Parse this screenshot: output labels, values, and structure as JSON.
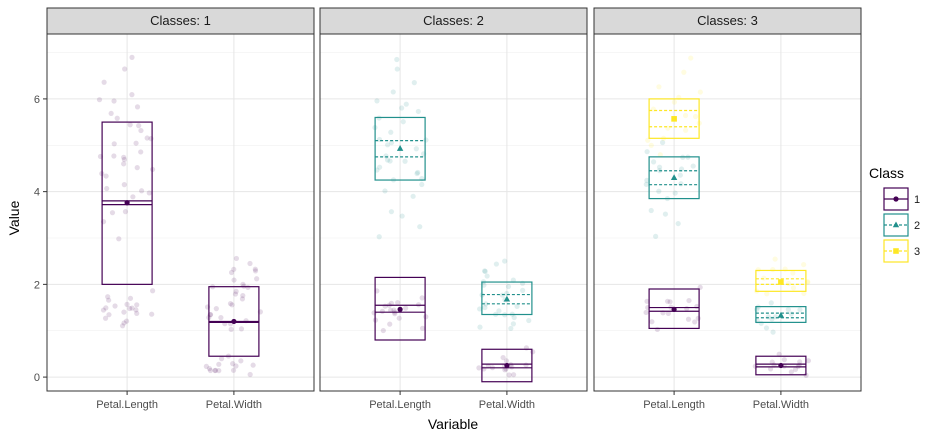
{
  "chart_data": {
    "type": "boxplot-faceted",
    "facet_prefix": "Classes: ",
    "facets": [
      {
        "label": "Classes: 1",
        "classes": [
          "1"
        ]
      },
      {
        "label": "Classes: 2",
        "classes": [
          "1",
          "2"
        ]
      },
      {
        "label": "Classes: 3",
        "classes": [
          "1",
          "2",
          "3"
        ]
      }
    ],
    "categories": [
      "Petal.Length",
      "Petal.Width"
    ],
    "xlabel": "Variable",
    "ylabel": "Value",
    "ylim": [
      -0.3,
      7.4
    ],
    "yticks": [
      0,
      2,
      4,
      6
    ],
    "grid": true,
    "legend": {
      "title": "Class",
      "position": "right",
      "entries": [
        "1",
        "2",
        "3"
      ]
    },
    "series_colors": {
      "1": "#440154",
      "2": "#21908C",
      "3": "#FDE725"
    },
    "series_shapes": {
      "1": "circle",
      "2": "triangle",
      "3": "square"
    },
    "series_linetypes": {
      "1": "solid",
      "2": "dashed",
      "3": "dashed"
    },
    "boxes": [
      {
        "facet": 0,
        "category": "Petal.Length",
        "class": "1",
        "lower": 2.0,
        "upper": 5.5,
        "mean": 3.76,
        "median_lo": 3.72,
        "median_hi": 3.8
      },
      {
        "facet": 0,
        "category": "Petal.Width",
        "class": "1",
        "lower": 0.45,
        "upper": 1.95,
        "mean": 1.2,
        "median_lo": 1.18,
        "median_hi": 1.2
      },
      {
        "facet": 1,
        "category": "Petal.Length",
        "class": "1",
        "lower": 0.8,
        "upper": 2.15,
        "mean": 1.46,
        "median_lo": 1.4,
        "median_hi": 1.55
      },
      {
        "facet": 1,
        "category": "Petal.Length",
        "class": "2",
        "lower": 4.25,
        "upper": 5.6,
        "mean": 4.93,
        "median_lo": 4.75,
        "median_hi": 5.1
      },
      {
        "facet": 1,
        "category": "Petal.Width",
        "class": "1",
        "lower": -0.1,
        "upper": 0.6,
        "mean": 0.25,
        "median_lo": 0.2,
        "median_hi": 0.28
      },
      {
        "facet": 1,
        "category": "Petal.Width",
        "class": "2",
        "lower": 1.35,
        "upper": 2.05,
        "mean": 1.68,
        "median_lo": 1.58,
        "median_hi": 1.78
      },
      {
        "facet": 2,
        "category": "Petal.Length",
        "class": "1",
        "lower": 1.05,
        "upper": 1.9,
        "mean": 1.46,
        "median_lo": 1.42,
        "median_hi": 1.5
      },
      {
        "facet": 2,
        "category": "Petal.Length",
        "class": "2",
        "lower": 3.85,
        "upper": 4.75,
        "mean": 4.3,
        "median_lo": 4.15,
        "median_hi": 4.45
      },
      {
        "facet": 2,
        "category": "Petal.Length",
        "class": "3",
        "lower": 5.15,
        "upper": 6.0,
        "mean": 5.57,
        "median_lo": 5.4,
        "median_hi": 5.75
      },
      {
        "facet": 2,
        "category": "Petal.Width",
        "class": "1",
        "lower": 0.05,
        "upper": 0.45,
        "mean": 0.25,
        "median_lo": 0.22,
        "median_hi": 0.28
      },
      {
        "facet": 2,
        "category": "Petal.Width",
        "class": "2",
        "lower": 1.18,
        "upper": 1.52,
        "mean": 1.33,
        "median_lo": 1.28,
        "median_hi": 1.38
      },
      {
        "facet": 2,
        "category": "Petal.Width",
        "class": "3",
        "lower": 1.85,
        "upper": 2.3,
        "mean": 2.05,
        "median_lo": 2.0,
        "median_hi": 2.12
      }
    ],
    "jitter_points": [
      {
        "facet": 0,
        "category": "Petal.Length",
        "class": "1",
        "values": [
          1.2,
          1.3,
          1.4,
          1.4,
          1.5,
          1.5,
          1.5,
          1.6,
          1.6,
          1.7,
          1.4,
          1.3,
          1.5,
          1.9,
          1.1,
          1.4,
          1.6,
          1.2,
          1.5,
          1.7,
          3.0,
          3.3,
          3.5,
          3.6,
          3.9,
          4.0,
          4.1,
          4.2,
          4.4,
          4.5,
          4.5,
          4.6,
          4.7,
          4.7,
          4.8,
          4.9,
          5.0,
          5.1,
          5.1,
          5.3,
          5.5,
          5.6,
          5.7,
          5.8,
          5.9,
          6.0,
          6.1,
          6.3,
          6.6,
          6.9,
          4.3,
          4.0,
          4.8,
          5.4,
          5.0
        ]
      },
      {
        "facet": 0,
        "category": "Petal.Width",
        "class": "1",
        "values": [
          0.1,
          0.2,
          0.2,
          0.2,
          0.3,
          0.2,
          0.4,
          0.2,
          0.3,
          0.1,
          0.2,
          0.4,
          0.5,
          0.3,
          0.2,
          1.0,
          1.1,
          1.2,
          1.3,
          1.3,
          1.4,
          1.5,
          1.5,
          1.6,
          1.8,
          1.8,
          1.9,
          2.0,
          2.1,
          2.2,
          2.3,
          2.3,
          2.4,
          2.5,
          1.0,
          1.2,
          1.4,
          1.7,
          1.9,
          2.1,
          2.3,
          1.3,
          1.5,
          1.8,
          2.0
        ]
      },
      {
        "facet": 1,
        "category": "Petal.Length",
        "class": "1",
        "values": [
          1.0,
          1.2,
          1.3,
          1.4,
          1.4,
          1.5,
          1.5,
          1.5,
          1.6,
          1.6,
          1.7,
          1.9,
          1.3,
          1.4,
          1.5,
          1.2,
          1.6,
          1.1,
          1.4,
          1.5
        ]
      },
      {
        "facet": 1,
        "category": "Petal.Length",
        "class": "2",
        "values": [
          3.0,
          3.3,
          3.5,
          3.6,
          3.9,
          4.0,
          4.1,
          4.2,
          4.4,
          4.5,
          4.5,
          4.6,
          4.7,
          4.7,
          4.8,
          4.9,
          5.0,
          5.1,
          5.1,
          5.3,
          5.5,
          5.6,
          5.7,
          5.8,
          5.9,
          6.0,
          6.1,
          6.3,
          6.6,
          6.9,
          4.3,
          4.8,
          5.4,
          5.0,
          4.4
        ]
      },
      {
        "facet": 1,
        "category": "Petal.Width",
        "class": "1",
        "values": [
          0.1,
          0.2,
          0.2,
          0.2,
          0.3,
          0.2,
          0.4,
          0.2,
          0.3,
          0.1,
          0.2,
          0.4,
          0.5,
          0.3,
          0.2,
          0.6
        ]
      },
      {
        "facet": 1,
        "category": "Petal.Width",
        "class": "2",
        "values": [
          1.0,
          1.1,
          1.2,
          1.3,
          1.3,
          1.4,
          1.5,
          1.5,
          1.6,
          1.8,
          1.8,
          1.9,
          2.0,
          2.1,
          2.2,
          2.3,
          2.3,
          2.4,
          2.5,
          1.2,
          1.4,
          1.7,
          1.9,
          2.1,
          1.3,
          1.5,
          1.8,
          2.0
        ]
      },
      {
        "facet": 2,
        "category": "Petal.Length",
        "class": "1",
        "values": [
          1.0,
          1.2,
          1.3,
          1.4,
          1.4,
          1.5,
          1.5,
          1.5,
          1.6,
          1.6,
          1.7,
          1.9,
          1.3,
          1.4,
          1.5,
          1.2,
          1.6
        ]
      },
      {
        "facet": 2,
        "category": "Petal.Length",
        "class": "2",
        "values": [
          3.0,
          3.3,
          3.5,
          3.6,
          3.9,
          4.0,
          4.1,
          4.2,
          4.4,
          4.5,
          4.5,
          4.6,
          4.7,
          4.7,
          4.8,
          4.9,
          5.0,
          4.3,
          4.0,
          4.4
        ]
      },
      {
        "facet": 2,
        "category": "Petal.Length",
        "class": "3",
        "values": [
          4.8,
          5.0,
          5.1,
          5.3,
          5.5,
          5.6,
          5.7,
          5.8,
          5.9,
          6.0,
          6.1,
          6.3,
          6.6,
          6.9,
          5.4,
          5.1
        ]
      },
      {
        "facet": 2,
        "category": "Petal.Width",
        "class": "1",
        "values": [
          0.1,
          0.2,
          0.2,
          0.2,
          0.3,
          0.2,
          0.4,
          0.2,
          0.3,
          0.1,
          0.2,
          0.4,
          0.5,
          0.3
        ]
      },
      {
        "facet": 2,
        "category": "Petal.Width",
        "class": "2",
        "values": [
          1.0,
          1.1,
          1.2,
          1.3,
          1.3,
          1.4,
          1.5,
          1.5,
          1.6,
          1.2,
          1.4,
          1.3,
          1.5
        ]
      },
      {
        "facet": 2,
        "category": "Petal.Width",
        "class": "3",
        "values": [
          1.8,
          1.8,
          1.9,
          2.0,
          2.1,
          2.2,
          2.3,
          2.3,
          2.4,
          2.5,
          1.9,
          2.1,
          2.3,
          2.0
        ]
      }
    ]
  }
}
